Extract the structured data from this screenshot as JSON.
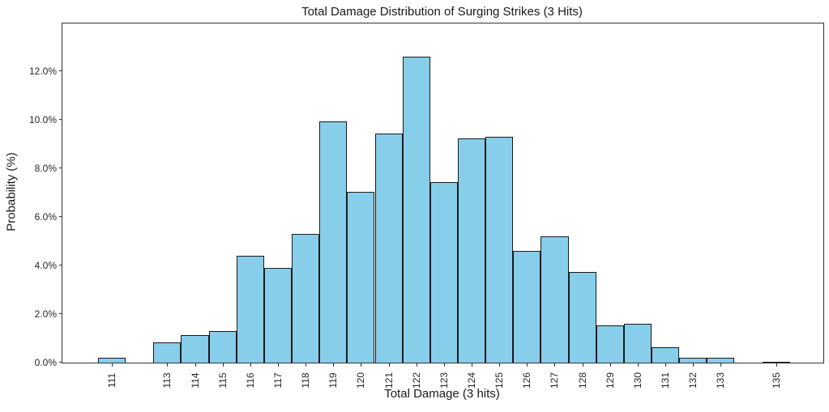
{
  "chart_data": {
    "type": "bar",
    "title": "Total Damage Distribution of Surging Strikes (3 Hits)",
    "xlabel": "Total Damage (3 hits)",
    "ylabel": "Probability (%)",
    "x": [
      111,
      112,
      113,
      114,
      115,
      116,
      117,
      118,
      119,
      120,
      121,
      122,
      123,
      124,
      125,
      126,
      127,
      128,
      129,
      130,
      131,
      132,
      133,
      134,
      135
    ],
    "values": [
      0.2,
      0,
      0.85,
      1.15,
      1.3,
      4.4,
      3.9,
      5.3,
      9.95,
      7.05,
      9.45,
      12.6,
      7.45,
      9.25,
      9.3,
      4.6,
      5.2,
      3.75,
      1.55,
      1.6,
      0.65,
      0.2,
      0.2,
      0,
      0.05
    ],
    "x_ticks": [
      111,
      113,
      114,
      115,
      116,
      117,
      118,
      119,
      120,
      121,
      122,
      123,
      124,
      125,
      126,
      127,
      128,
      129,
      130,
      131,
      132,
      133,
      135
    ],
    "y_ticks": [
      0,
      2,
      4,
      6,
      8,
      10,
      12
    ],
    "y_tick_labels": [
      "0.0%",
      "2.0%",
      "4.0%",
      "6.0%",
      "8.0%",
      "10.0%",
      "12.0%"
    ],
    "xlim": [
      109.21,
      136.71
    ],
    "ylim": [
      0,
      13.98
    ],
    "bar_width": 1,
    "bar_color": "#87CEEB",
    "bar_edge_color": "#1a1a1a",
    "grid": false,
    "legend_position": "none"
  }
}
